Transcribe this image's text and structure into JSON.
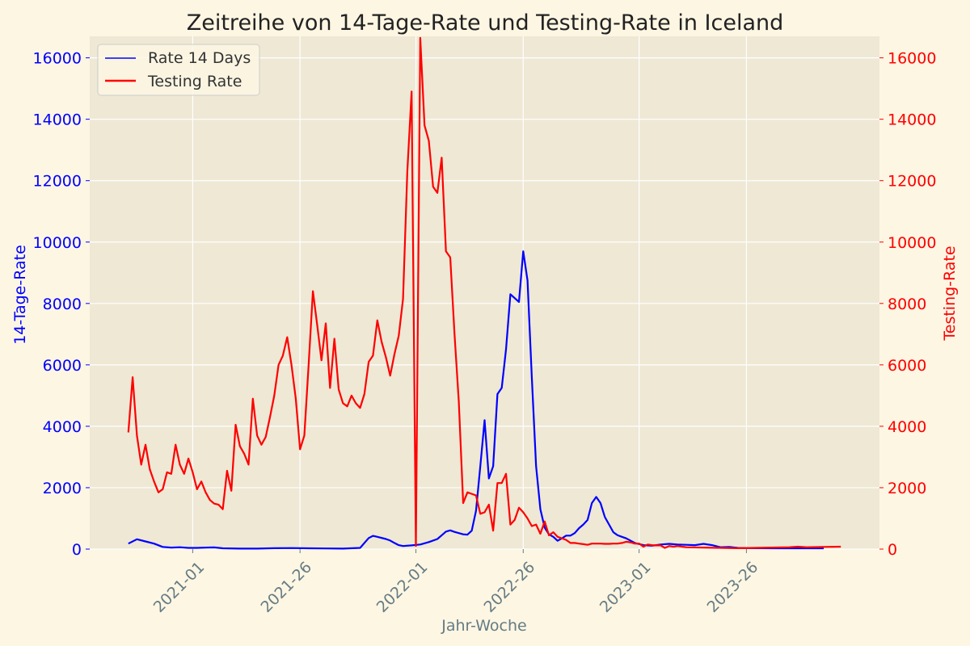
{
  "chart_data": {
    "type": "line",
    "title": "Zeitreihe von 14-Tage-Rate und Testing-Rate in Iceland",
    "xlabel": "Jahr-Woche",
    "ylabel_left": "14-Tage-Rate",
    "ylabel_right": "Testing-Rate",
    "x_ticks": [
      "2021-01",
      "2021-26",
      "2022-01",
      "2022-26",
      "2023-01",
      "2023-26"
    ],
    "y_ticks_left": [
      "0",
      "2000",
      "4000",
      "6000",
      "8000",
      "10000",
      "12000",
      "14000",
      "16000"
    ],
    "y_ticks_right": [
      "0",
      "2000",
      "4000",
      "6000",
      "8000",
      "10000",
      "12000",
      "14000",
      "16000"
    ],
    "ylim": [
      0,
      16700
    ],
    "x_units": "weeks since 2020-01, estimated",
    "grid": true,
    "legend_position": "top-left",
    "colors": {
      "rate14": "#0000ff",
      "testing": "#ff0000",
      "plot_bg": "#eee8d5",
      "figure_bg": "#fdf6e3",
      "grid": "#ffffff",
      "xaxis_text": "#657b83"
    },
    "series": [
      {
        "name": "Rate 14 Days",
        "axis": "left",
        "color": "#0000ff",
        "points": [
          [
            38,
            180
          ],
          [
            40,
            320
          ],
          [
            42,
            250
          ],
          [
            44,
            180
          ],
          [
            46,
            70
          ],
          [
            48,
            50
          ],
          [
            50,
            60
          ],
          [
            52,
            40
          ],
          [
            54,
            40
          ],
          [
            56,
            50
          ],
          [
            58,
            55
          ],
          [
            60,
            25
          ],
          [
            64,
            15
          ],
          [
            68,
            15
          ],
          [
            72,
            30
          ],
          [
            76,
            35
          ],
          [
            80,
            25
          ],
          [
            84,
            20
          ],
          [
            88,
            15
          ],
          [
            92,
            40
          ],
          [
            94,
            360
          ],
          [
            95,
            430
          ],
          [
            96,
            400
          ],
          [
            98,
            330
          ],
          [
            99,
            280
          ],
          [
            100,
            200
          ],
          [
            101,
            130
          ],
          [
            102,
            100
          ],
          [
            104,
            120
          ],
          [
            106,
            150
          ],
          [
            108,
            230
          ],
          [
            110,
            330
          ],
          [
            111,
            450
          ],
          [
            112,
            570
          ],
          [
            113,
            610
          ],
          [
            114,
            560
          ],
          [
            116,
            480
          ],
          [
            117,
            470
          ],
          [
            118,
            600
          ],
          [
            119,
            1250
          ],
          [
            120,
            2700
          ],
          [
            121,
            4200
          ],
          [
            122,
            2300
          ],
          [
            123,
            2700
          ],
          [
            124,
            5050
          ],
          [
            125,
            5250
          ],
          [
            126,
            6500
          ],
          [
            127,
            8300
          ],
          [
            129,
            8050
          ],
          [
            130,
            9700
          ],
          [
            131,
            8750
          ],
          [
            132,
            5600
          ],
          [
            133,
            2700
          ],
          [
            134,
            1300
          ],
          [
            135,
            700
          ],
          [
            136,
            480
          ],
          [
            137,
            400
          ],
          [
            138,
            270
          ],
          [
            139,
            350
          ],
          [
            140,
            440
          ],
          [
            141,
            440
          ],
          [
            142,
            520
          ],
          [
            143,
            680
          ],
          [
            144,
            800
          ],
          [
            145,
            950
          ],
          [
            146,
            1500
          ],
          [
            147,
            1700
          ],
          [
            148,
            1500
          ],
          [
            149,
            1050
          ],
          [
            150,
            800
          ],
          [
            151,
            550
          ],
          [
            152,
            450
          ],
          [
            153,
            400
          ],
          [
            154,
            350
          ],
          [
            156,
            200
          ],
          [
            158,
            130
          ],
          [
            160,
            110
          ],
          [
            162,
            150
          ],
          [
            164,
            170
          ],
          [
            166,
            150
          ],
          [
            168,
            140
          ],
          [
            170,
            130
          ],
          [
            172,
            170
          ],
          [
            174,
            130
          ],
          [
            176,
            60
          ],
          [
            178,
            70
          ],
          [
            180,
            40
          ],
          [
            184,
            30
          ],
          [
            188,
            25
          ],
          [
            192,
            25
          ],
          [
            196,
            25
          ],
          [
            200,
            25
          ]
        ]
      },
      {
        "name": "Testing Rate",
        "axis": "right",
        "color": "#ff0000",
        "points": [
          [
            38,
            3800
          ],
          [
            39,
            5600
          ],
          [
            40,
            3700
          ],
          [
            41,
            2750
          ],
          [
            42,
            3400
          ],
          [
            43,
            2600
          ],
          [
            44,
            2200
          ],
          [
            45,
            1850
          ],
          [
            46,
            1950
          ],
          [
            47,
            2500
          ],
          [
            48,
            2450
          ],
          [
            49,
            3400
          ],
          [
            50,
            2750
          ],
          [
            51,
            2450
          ],
          [
            52,
            2950
          ],
          [
            53,
            2500
          ],
          [
            54,
            1950
          ],
          [
            55,
            2200
          ],
          [
            56,
            1850
          ],
          [
            57,
            1600
          ],
          [
            58,
            1480
          ],
          [
            59,
            1450
          ],
          [
            60,
            1300
          ],
          [
            61,
            2550
          ],
          [
            62,
            1900
          ],
          [
            63,
            4050
          ],
          [
            64,
            3350
          ],
          [
            65,
            3100
          ],
          [
            66,
            2750
          ],
          [
            67,
            4900
          ],
          [
            68,
            3700
          ],
          [
            69,
            3400
          ],
          [
            70,
            3650
          ],
          [
            71,
            4300
          ],
          [
            72,
            5000
          ],
          [
            73,
            6000
          ],
          [
            74,
            6300
          ],
          [
            75,
            6900
          ],
          [
            76,
            6000
          ],
          [
            77,
            4900
          ],
          [
            78,
            3250
          ],
          [
            79,
            3700
          ],
          [
            80,
            6000
          ],
          [
            81,
            8400
          ],
          [
            82,
            7300
          ],
          [
            83,
            6150
          ],
          [
            84,
            7350
          ],
          [
            85,
            5250
          ],
          [
            86,
            6850
          ],
          [
            87,
            5200
          ],
          [
            88,
            4750
          ],
          [
            89,
            4650
          ],
          [
            90,
            5000
          ],
          [
            91,
            4750
          ],
          [
            92,
            4600
          ],
          [
            93,
            5050
          ],
          [
            94,
            6100
          ],
          [
            95,
            6300
          ],
          [
            96,
            7450
          ],
          [
            97,
            6750
          ],
          [
            98,
            6250
          ],
          [
            99,
            5650
          ],
          [
            100,
            6350
          ],
          [
            101,
            6950
          ],
          [
            102,
            8150
          ],
          [
            103,
            12300
          ],
          [
            104,
            14900
          ],
          [
            105,
            100
          ],
          [
            106,
            16650
          ],
          [
            107,
            13800
          ],
          [
            108,
            13300
          ],
          [
            109,
            11800
          ],
          [
            110,
            11600
          ],
          [
            111,
            12750
          ],
          [
            112,
            9700
          ],
          [
            113,
            9500
          ],
          [
            114,
            7000
          ],
          [
            115,
            4800
          ],
          [
            116,
            1500
          ],
          [
            117,
            1850
          ],
          [
            118,
            1800
          ],
          [
            119,
            1750
          ],
          [
            120,
            1150
          ],
          [
            121,
            1200
          ],
          [
            122,
            1450
          ],
          [
            123,
            600
          ],
          [
            124,
            2150
          ],
          [
            125,
            2150
          ],
          [
            126,
            2450
          ],
          [
            127,
            800
          ],
          [
            128,
            950
          ],
          [
            129,
            1350
          ],
          [
            130,
            1200
          ],
          [
            131,
            1000
          ],
          [
            132,
            750
          ],
          [
            133,
            800
          ],
          [
            134,
            500
          ],
          [
            135,
            900
          ],
          [
            136,
            450
          ],
          [
            137,
            550
          ],
          [
            138,
            400
          ],
          [
            139,
            350
          ],
          [
            140,
            300
          ],
          [
            141,
            200
          ],
          [
            142,
            200
          ],
          [
            143,
            180
          ],
          [
            144,
            160
          ],
          [
            145,
            140
          ],
          [
            146,
            180
          ],
          [
            147,
            180
          ],
          [
            148,
            180
          ],
          [
            149,
            170
          ],
          [
            150,
            170
          ],
          [
            151,
            180
          ],
          [
            152,
            180
          ],
          [
            153,
            200
          ],
          [
            154,
            240
          ],
          [
            155,
            220
          ],
          [
            156,
            180
          ],
          [
            157,
            180
          ],
          [
            158,
            80
          ],
          [
            159,
            150
          ],
          [
            160,
            130
          ],
          [
            161,
            120
          ],
          [
            162,
            120
          ],
          [
            163,
            40
          ],
          [
            164,
            100
          ],
          [
            165,
            80
          ],
          [
            166,
            100
          ],
          [
            167,
            80
          ],
          [
            168,
            60
          ],
          [
            172,
            50
          ],
          [
            176,
            40
          ],
          [
            180,
            30
          ],
          [
            184,
            40
          ],
          [
            188,
            50
          ],
          [
            192,
            60
          ],
          [
            194,
            80
          ],
          [
            196,
            60
          ],
          [
            200,
            70
          ],
          [
            204,
            80
          ]
        ]
      }
    ]
  }
}
